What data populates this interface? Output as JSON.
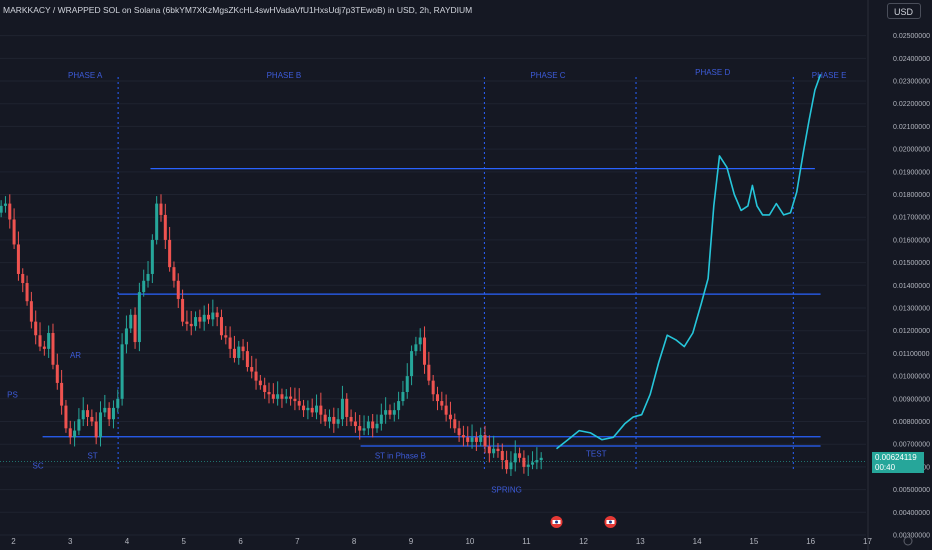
{
  "header": {
    "title": "MARKKACY / WRAPPED SOL on Solana (6bkYM7XKzMgsZKcHL4swHVadaVfU1HxsUdj7p3TEwoB) in USD, 2h, RAYDIUM",
    "currency_button": "USD"
  },
  "price_tag": {
    "price": "0.00624119",
    "countdown": "00:40"
  },
  "colors": {
    "bg": "#151823",
    "up": "#26a69a",
    "down": "#ef5350",
    "level_line": "#2962ff",
    "projection": "#26c6da",
    "label": "#3d5bd9"
  },
  "chart_data": {
    "type": "candlestick",
    "title": "MARKKACY / WRAPPED SOL on Solana (6bkYM7XKzMgsZKcHL4swHVadaVfU1HxsUdj7p3TEwoB) in USD, 2h, RAYDIUM",
    "x_tick_labels": [
      "2",
      "3",
      "4",
      "5",
      "6",
      "7",
      "8",
      "9",
      "10",
      "11",
      "12",
      "13",
      "14",
      "15",
      "16",
      "17"
    ],
    "xlim": [
      1.75,
      17.0
    ],
    "y_tick_labels": [
      "0.02500000",
      "0.02400000",
      "0.02300000",
      "0.02200000",
      "0.02100000",
      "0.02000000",
      "0.01900000",
      "0.01800000",
      "0.01700000",
      "0.01600000",
      "0.01500000",
      "0.01400000",
      "0.01300000",
      "0.01200000",
      "0.01100000",
      "0.01000000",
      "0.00900000",
      "0.00800000",
      "0.00700000",
      "0.00600000",
      "0.00500000",
      "0.00400000",
      "0.00300000"
    ],
    "ylim": [
      0.003,
      0.0256
    ],
    "candles_close": [
      0.0175,
      0.0176,
      0.0169,
      0.0158,
      0.0145,
      0.0141,
      0.0133,
      0.0124,
      0.0118,
      0.0113,
      0.0112,
      0.0119,
      0.0105,
      0.0097,
      0.0087,
      0.0077,
      0.0073,
      0.0076,
      0.0081,
      0.0085,
      0.0082,
      0.008,
      0.0073,
      0.0084,
      0.0086,
      0.0081,
      0.0086,
      0.009,
      0.0114,
      0.0121,
      0.0127,
      0.0115,
      0.0137,
      0.0142,
      0.0145,
      0.016,
      0.0176,
      0.0171,
      0.016,
      0.0148,
      0.0142,
      0.0134,
      0.0124,
      0.0123,
      0.0122,
      0.0126,
      0.0124,
      0.0127,
      0.0125,
      0.0128,
      0.0126,
      0.0118,
      0.0117,
      0.0112,
      0.0108,
      0.0113,
      0.0111,
      0.0104,
      0.0102,
      0.0098,
      0.0096,
      0.0093,
      0.0092,
      0.009,
      0.0092,
      0.009,
      0.0091,
      0.009,
      0.0089,
      0.0087,
      0.0085,
      0.0086,
      0.0084,
      0.0087,
      0.0083,
      0.008,
      0.0082,
      0.0079,
      0.0081,
      0.009,
      0.0082,
      0.008,
      0.0078,
      0.0076,
      0.0077,
      0.008,
      0.0077,
      0.0079,
      0.0083,
      0.0085,
      0.0083,
      0.0085,
      0.0089,
      0.0093,
      0.01,
      0.0111,
      0.0114,
      0.0117,
      0.0105,
      0.0098,
      0.0092,
      0.0089,
      0.0087,
      0.0083,
      0.0081,
      0.0077,
      0.0074,
      0.0073,
      0.0071,
      0.0073,
      0.0071,
      0.0074,
      0.0069,
      0.0066,
      0.0068,
      0.0067,
      0.0063,
      0.0059,
      0.0062,
      0.0066,
      0.0064,
      0.006,
      0.0061,
      0.0062,
      0.0063,
      0.0064
    ],
    "candles_open_first": 0.0172,
    "horizontal_levels": [
      0.01914,
      0.01361,
      0.00733,
      0.00692
    ],
    "phase_dividers_x": [
      3.83,
      10.28,
      12.95,
      15.72
    ],
    "projection": {
      "x": [
        11.55,
        11.75,
        11.95,
        12.15,
        12.35,
        12.55,
        12.75,
        12.9,
        13.05,
        13.2,
        13.35,
        13.5,
        13.65,
        13.8,
        13.95,
        14.1,
        14.22,
        14.32,
        14.42,
        14.55,
        14.68,
        14.8,
        14.92,
        15.0,
        15.08,
        15.18,
        15.3,
        15.42,
        15.55,
        15.67,
        15.78,
        15.9,
        16.0,
        16.1,
        16.2
      ],
      "y": [
        0.0068,
        0.0072,
        0.0076,
        0.0075,
        0.0072,
        0.0073,
        0.0079,
        0.0082,
        0.0083,
        0.0092,
        0.0106,
        0.0118,
        0.0116,
        0.0113,
        0.0119,
        0.0132,
        0.0143,
        0.0175,
        0.0197,
        0.0192,
        0.018,
        0.0173,
        0.0175,
        0.0184,
        0.0175,
        0.0171,
        0.0171,
        0.0176,
        0.0171,
        0.0172,
        0.0181,
        0.0199,
        0.0213,
        0.0226,
        0.0233
      ]
    },
    "annotations": [
      {
        "text": "PHASE A",
        "x": 3.25,
        "y": 0.02314
      },
      {
        "text": "PHASE B",
        "x": 6.75,
        "y": 0.02314
      },
      {
        "text": "PHASE C",
        "x": 11.4,
        "y": 0.02314
      },
      {
        "text": "PHASE D",
        "x": 14.3,
        "y": 0.02326
      },
      {
        "text": "PHASE E",
        "x": 16.35,
        "y": 0.02314
      },
      {
        "text": "PS",
        "x": 1.97,
        "y": 0.00905
      },
      {
        "text": "AR",
        "x": 3.08,
        "y": 0.01079
      },
      {
        "text": "SC",
        "x": 2.42,
        "y": 0.00593
      },
      {
        "text": "ST",
        "x": 3.38,
        "y": 0.00636
      },
      {
        "text": "ST in Phase B",
        "x": 8.8,
        "y": 0.00636
      },
      {
        "text": "SPRING",
        "x": 10.67,
        "y": 0.00488
      },
      {
        "text": "TEST",
        "x": 12.25,
        "y": 0.00646
      }
    ],
    "event_icons_x": [
      11.55,
      12.5
    ]
  }
}
